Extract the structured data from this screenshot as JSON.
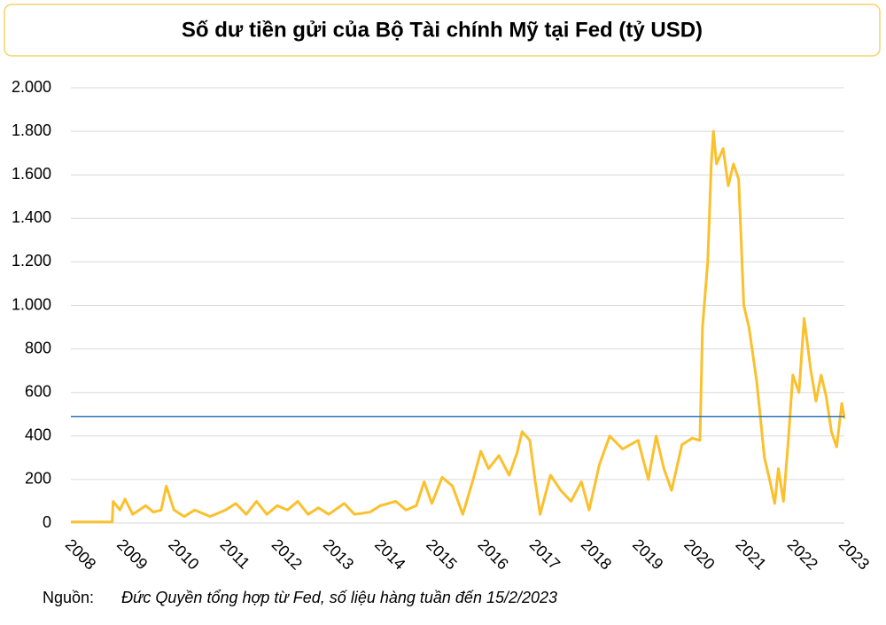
{
  "chart_data": {
    "type": "line",
    "title": "Số dư tiền gửi của Bộ Tài chính Mỹ tại Fed (tỷ USD)",
    "source_label": "Nguồn:",
    "source": "Đức Quyền tổng hợp từ Fed, số liệu hàng tuần đến 15/2/2023",
    "x": [
      2008.0,
      2008.8,
      2008.82,
      2008.95,
      2009.05,
      2009.2,
      2009.45,
      2009.6,
      2009.75,
      2009.85,
      2010.0,
      2010.2,
      2010.4,
      2010.7,
      2011.0,
      2011.2,
      2011.4,
      2011.6,
      2011.8,
      2012.0,
      2012.2,
      2012.4,
      2012.6,
      2012.8,
      2013.0,
      2013.3,
      2013.5,
      2013.8,
      2014.0,
      2014.3,
      2014.5,
      2014.7,
      2014.85,
      2015.0,
      2015.2,
      2015.4,
      2015.6,
      2015.8,
      2015.95,
      2016.1,
      2016.3,
      2016.5,
      2016.65,
      2016.75,
      2016.9,
      2017.0,
      2017.1,
      2017.3,
      2017.5,
      2017.7,
      2017.9,
      2018.05,
      2018.25,
      2018.45,
      2018.7,
      2019.0,
      2019.2,
      2019.35,
      2019.5,
      2019.65,
      2019.85,
      2020.05,
      2020.2,
      2020.25,
      2020.35,
      2020.42,
      2020.46,
      2020.52,
      2020.65,
      2020.75,
      2020.85,
      2020.95,
      2021.05,
      2021.15,
      2021.3,
      2021.45,
      2021.55,
      2021.65,
      2021.72,
      2021.82,
      2021.92,
      2022.0,
      2022.12,
      2022.22,
      2022.35,
      2022.45,
      2022.55,
      2022.65,
      2022.75,
      2022.85,
      2022.95,
      2023.0
    ],
    "series": [
      {
        "color": "#fbc02d",
        "values": [
          5,
          5,
          100,
          60,
          110,
          40,
          80,
          50,
          60,
          170,
          60,
          30,
          60,
          30,
          60,
          90,
          40,
          100,
          40,
          80,
          60,
          100,
          40,
          70,
          40,
          90,
          40,
          50,
          80,
          100,
          60,
          80,
          190,
          90,
          210,
          170,
          40,
          200,
          330,
          250,
          310,
          220,
          320,
          420,
          380,
          200,
          40,
          220,
          150,
          100,
          190,
          60,
          270,
          400,
          340,
          380,
          200,
          400,
          250,
          150,
          360,
          390,
          380,
          900,
          1200,
          1650,
          1800,
          1650,
          1720,
          1550,
          1650,
          1580,
          1000,
          900,
          650,
          300,
          200,
          90,
          250,
          100,
          400,
          680,
          600,
          940,
          700,
          560,
          680,
          580,
          420,
          350,
          550,
          480
        ]
      }
    ],
    "reference_line": {
      "value": 490,
      "color": "#2e75b6"
    },
    "xlim": [
      2008,
      2023
    ],
    "xticks": [
      2008,
      2009,
      2010,
      2011,
      2012,
      2013,
      2014,
      2015,
      2016,
      2017,
      2018,
      2019,
      2020,
      2021,
      2022,
      2023
    ],
    "ylim": [
      0,
      2000
    ],
    "yticks": [
      0,
      200,
      400,
      600,
      800,
      {
        "value": 1000,
        "label": "1.000"
      },
      {
        "value": 1200,
        "label": "1.200"
      },
      {
        "value": 1400,
        "label": "1.400"
      },
      {
        "value": 1600,
        "label": "1.600"
      },
      {
        "value": 1800,
        "label": "1.800"
      },
      {
        "value": 2000,
        "label": "2.000"
      }
    ],
    "grid": true
  }
}
